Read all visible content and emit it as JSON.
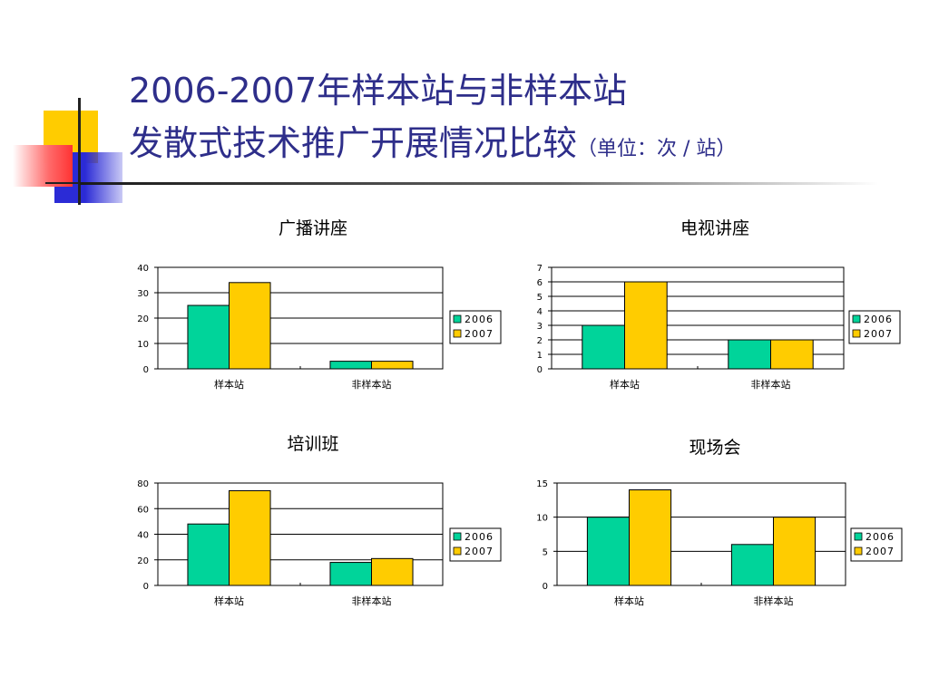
{
  "header": {
    "title_line1": "2006-2007年样本站与非样本站",
    "title_line2": "发散式技术推广开展情况比较",
    "title_unit": "（单位：次 / 站）"
  },
  "colors": {
    "s2006": "#00d49a",
    "s2007": "#ffcc00",
    "title": "#2e2e8a"
  },
  "chart_data": [
    {
      "type": "bar",
      "title": "广播讲座",
      "categories": [
        "样本站",
        "非样本站"
      ],
      "series": [
        {
          "name": "2006",
          "values": [
            25,
            3
          ]
        },
        {
          "name": "2007",
          "values": [
            34,
            3
          ]
        }
      ],
      "ylim": [
        0,
        40
      ],
      "yticks": [
        0,
        10,
        20,
        30,
        40
      ],
      "grid": true,
      "legend": "right"
    },
    {
      "type": "bar",
      "title": "电视讲座",
      "categories": [
        "样本站",
        "非样本站"
      ],
      "series": [
        {
          "name": "2006",
          "values": [
            3,
            2
          ]
        },
        {
          "name": "2007",
          "values": [
            6,
            2
          ]
        }
      ],
      "ylim": [
        0,
        7
      ],
      "yticks": [
        0,
        1,
        2,
        3,
        4,
        5,
        6,
        7
      ],
      "grid": true,
      "legend": "right"
    },
    {
      "type": "bar",
      "title": "培训班",
      "categories": [
        "样本站",
        "非样本站"
      ],
      "series": [
        {
          "name": "2006",
          "values": [
            48,
            18
          ]
        },
        {
          "name": "2007",
          "values": [
            74,
            21
          ]
        }
      ],
      "ylim": [
        0,
        80
      ],
      "yticks": [
        0,
        20,
        40,
        60,
        80
      ],
      "grid": true,
      "legend": "right"
    },
    {
      "type": "bar",
      "title": "现场会",
      "categories": [
        "样本站",
        "非样本站"
      ],
      "series": [
        {
          "name": "2006",
          "values": [
            10,
            6
          ]
        },
        {
          "name": "2007",
          "values": [
            14,
            10
          ]
        }
      ],
      "ylim": [
        0,
        15
      ],
      "yticks": [
        0,
        5,
        10,
        15
      ],
      "grid": true,
      "legend": "right"
    }
  ]
}
